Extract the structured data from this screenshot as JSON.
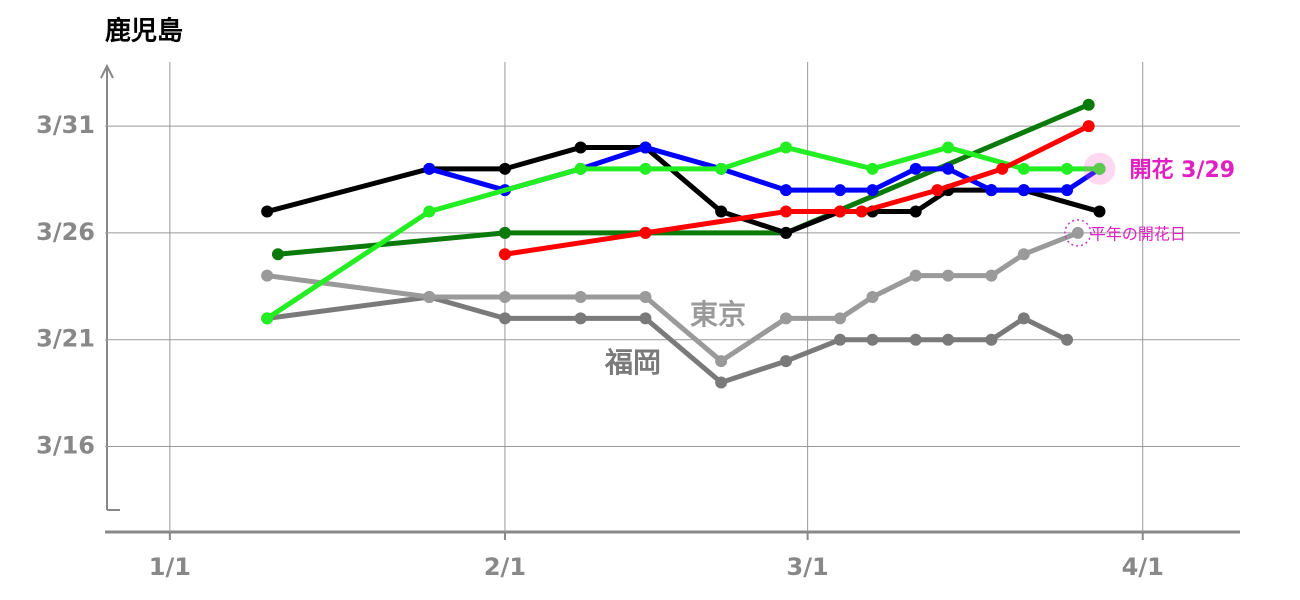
{
  "chart_data": {
    "type": "line",
    "title": "鹿児島",
    "xlim": [
      -6,
      99
    ],
    "ylim": [
      12,
      34
    ],
    "xticks": [
      {
        "value": 0,
        "label": "1/1"
      },
      {
        "value": 31,
        "label": "2/1"
      },
      {
        "value": 59,
        "label": "3/1"
      },
      {
        "value": 90,
        "label": "4/1"
      }
    ],
    "yticks": [
      {
        "value": 16,
        "label": "3/16"
      },
      {
        "value": 21,
        "label": "3/21"
      },
      {
        "value": 26,
        "label": "3/26"
      },
      {
        "value": 31,
        "label": "3/31"
      }
    ],
    "grid": true,
    "series": [
      {
        "name": "福岡",
        "color": "#7a7a7a",
        "x": [
          9,
          24,
          31,
          38,
          44,
          51,
          57,
          62,
          65,
          69,
          72,
          76,
          79,
          83
        ],
        "values": [
          22,
          23,
          22,
          22,
          22,
          19,
          20,
          21,
          21,
          21,
          21,
          21,
          22,
          21
        ]
      },
      {
        "name": "東京",
        "color": "#9a9a9a",
        "x": [
          9,
          24,
          31,
          38,
          44,
          51,
          57,
          62,
          65,
          69,
          72,
          76,
          79,
          84
        ],
        "values": [
          24,
          23,
          23,
          23,
          23,
          20,
          22,
          22,
          23,
          24,
          24,
          24,
          25,
          26
        ]
      },
      {
        "color": "#0a7a0a",
        "x": [
          10,
          31,
          44,
          57,
          85
        ],
        "values": [
          25,
          26,
          26,
          26,
          32
        ]
      },
      {
        "color": "#000000",
        "x": [
          9,
          24,
          31,
          38,
          44,
          51,
          57,
          62,
          65,
          69,
          72,
          76,
          79,
          86
        ],
        "values": [
          27,
          29,
          29,
          30,
          30,
          27,
          26,
          27,
          27,
          27,
          28,
          28,
          28,
          27
        ]
      },
      {
        "color": "#0000ff",
        "x": [
          24,
          31,
          38,
          44,
          51,
          57,
          62,
          65,
          69,
          72,
          76,
          79,
          83,
          86
        ],
        "values": [
          29,
          28,
          29,
          30,
          29,
          28,
          28,
          28,
          29,
          29,
          28,
          28,
          28,
          29
        ]
      },
      {
        "color": "#22ee22",
        "x": [
          9,
          24,
          38,
          44,
          51,
          57,
          65,
          72,
          79,
          83,
          86
        ],
        "values": [
          22,
          27,
          29,
          29,
          29,
          30,
          29,
          30,
          29,
          29,
          29
        ]
      },
      {
        "color": "#ff0000",
        "x": [
          31,
          44,
          57,
          62,
          64,
          71,
          77,
          85
        ],
        "values": [
          25,
          26,
          27,
          27,
          27,
          28,
          29,
          31
        ]
      }
    ],
    "annotations": [
      "開花 3/29",
      "平年の開花日"
    ]
  }
}
